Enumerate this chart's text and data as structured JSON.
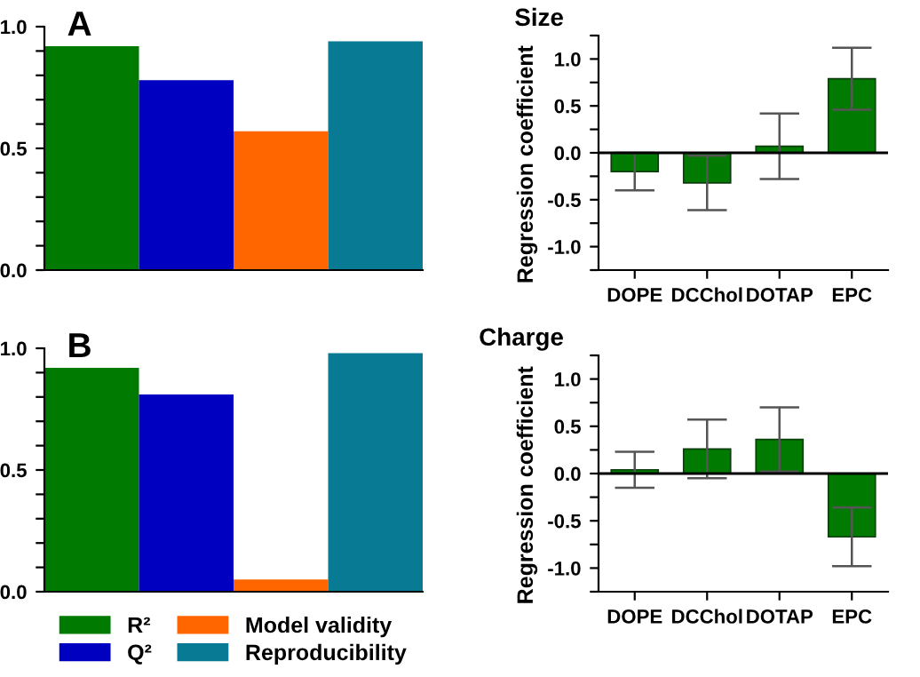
{
  "chart_data": [
    {
      "type": "bar",
      "title": "A",
      "categories": [
        null
      ],
      "series": [
        {
          "color": "#007a00",
          "values": [
            0.92
          ]
        },
        {
          "color": "#0000c0",
          "values": [
            0.78
          ]
        },
        {
          "color": "#ff6600",
          "values": [
            0.57
          ]
        },
        {
          "color": "#087a94",
          "values": [
            0.94
          ]
        }
      ],
      "ylim": [
        0,
        1
      ],
      "yticks": [
        {
          "value": 0,
          "label": "0.0"
        },
        {
          "value": 0.1,
          "label": null
        },
        {
          "value": 0.2,
          "label": null
        },
        {
          "value": 0.3,
          "label": null
        },
        {
          "value": 0.4,
          "label": null
        },
        {
          "value": 0.5,
          "label": "0.5"
        },
        {
          "value": 0.6,
          "label": null
        },
        {
          "value": 0.7,
          "label": null
        },
        {
          "value": 0.8,
          "label": null
        },
        {
          "value": 0.9,
          "label": null
        },
        {
          "value": 1,
          "label": "1.0"
        }
      ],
      "legend": false
    },
    {
      "type": "bar",
      "title": "Size",
      "ylabel": "Regression coefficient",
      "categories": [
        "DOPE",
        "DCChol",
        "DOTAP",
        "EPC"
      ],
      "color": "#007a00",
      "values": [
        -0.2,
        -0.32,
        0.07,
        0.79
      ],
      "errors": [
        0.2,
        0.29,
        0.35,
        0.33
      ],
      "ylim": [
        -1.25,
        1.25
      ],
      "yticks": [
        {
          "value": -1.25,
          "label": null
        },
        {
          "value": -1,
          "label": "-1.0"
        },
        {
          "value": -0.75,
          "label": null
        },
        {
          "value": -0.5,
          "label": "-0.5"
        },
        {
          "value": -0.25,
          "label": null
        },
        {
          "value": 0,
          "label": "0.0"
        },
        {
          "value": 0.25,
          "label": null
        },
        {
          "value": 0.5,
          "label": "0.5"
        },
        {
          "value": 0.75,
          "label": null
        },
        {
          "value": 1,
          "label": "1.0"
        },
        {
          "value": 1.25,
          "label": null
        }
      ]
    },
    {
      "type": "bar",
      "title": "B",
      "categories": [
        null
      ],
      "series": [
        {
          "name": "R²",
          "color": "#007a00",
          "values": [
            0.92
          ]
        },
        {
          "name": "Q²",
          "color": "#0000c0",
          "values": [
            0.81
          ]
        },
        {
          "name": "Model validity",
          "color": "#ff6600",
          "values": [
            0.05
          ]
        },
        {
          "name": "Reproducibility",
          "color": "#087a94",
          "values": [
            0.98
          ]
        }
      ],
      "ylim": [
        0,
        1
      ],
      "yticks": [
        {
          "value": 0,
          "label": "0.0"
        },
        {
          "value": 0.1,
          "label": null
        },
        {
          "value": 0.2,
          "label": null
        },
        {
          "value": 0.3,
          "label": null
        },
        {
          "value": 0.4,
          "label": null
        },
        {
          "value": 0.5,
          "label": "0.5"
        },
        {
          "value": 0.6,
          "label": null
        },
        {
          "value": 0.7,
          "label": null
        },
        {
          "value": 0.8,
          "label": null
        },
        {
          "value": 0.9,
          "label": null
        },
        {
          "value": 1,
          "label": "1.0"
        }
      ],
      "legend": "bottom"
    },
    {
      "type": "bar",
      "title": "Charge",
      "ylabel": "Regression coefficient",
      "categories": [
        "DOPE",
        "DCChol",
        "DOTAP",
        "EPC"
      ],
      "color": "#007a00",
      "values": [
        0.04,
        0.26,
        0.36,
        -0.67
      ],
      "errors": [
        0.19,
        0.31,
        0.34,
        0.31
      ],
      "ylim": [
        -1.25,
        1.25
      ],
      "yticks": [
        {
          "value": -1.25,
          "label": null
        },
        {
          "value": -1,
          "label": "-1.0"
        },
        {
          "value": -0.75,
          "label": null
        },
        {
          "value": -0.5,
          "label": "-0.5"
        },
        {
          "value": -0.25,
          "label": null
        },
        {
          "value": 0,
          "label": "0.0"
        },
        {
          "value": 0.25,
          "label": null
        },
        {
          "value": 0.5,
          "label": "0.5"
        },
        {
          "value": 0.75,
          "label": null
        },
        {
          "value": 1,
          "label": "1.0"
        },
        {
          "value": 1.25,
          "label": null
        }
      ]
    }
  ]
}
